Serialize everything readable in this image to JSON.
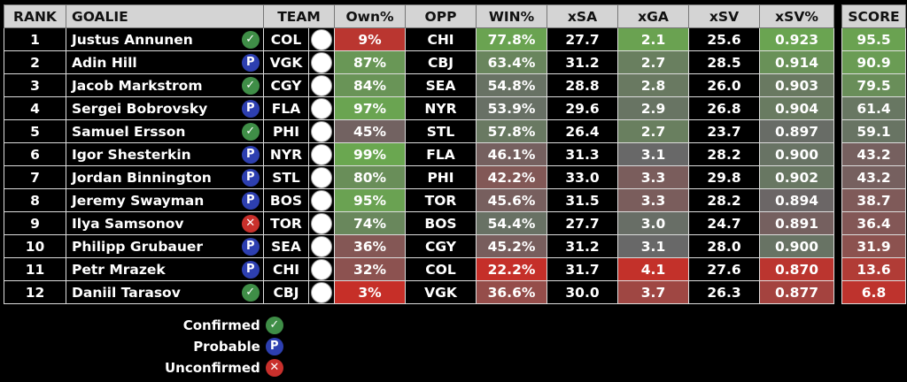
{
  "headers": {
    "rank": "RANK",
    "goalie": "GOALIE",
    "team": "TEAM",
    "own": "Own%",
    "opp": "OPP",
    "win": "WIN%",
    "xsa": "xSA",
    "xga": "xGA",
    "xsv": "xSV",
    "xsvp": "xSV%",
    "score": "SCORE"
  },
  "rows": [
    {
      "rank": "1",
      "goalie": "Justus Annunen",
      "status": "confirmed",
      "team": "COL",
      "own": "9%",
      "opp": "CHI",
      "win": "77.8%",
      "xsa": "27.7",
      "xga": "2.1",
      "xsv": "25.6",
      "xsvp": "0.923",
      "score": "95.5"
    },
    {
      "rank": "2",
      "goalie": "Adin Hill",
      "status": "probable",
      "team": "VGK",
      "own": "87%",
      "opp": "CBJ",
      "win": "63.4%",
      "xsa": "31.2",
      "xga": "2.7",
      "xsv": "28.5",
      "xsvp": "0.914",
      "score": "90.9"
    },
    {
      "rank": "3",
      "goalie": "Jacob Markstrom",
      "status": "confirmed",
      "team": "CGY",
      "own": "84%",
      "opp": "SEA",
      "win": "54.8%",
      "xsa": "28.8",
      "xga": "2.8",
      "xsv": "26.0",
      "xsvp": "0.903",
      "score": "79.5"
    },
    {
      "rank": "4",
      "goalie": "Sergei Bobrovsky",
      "status": "probable",
      "team": "FLA",
      "own": "97%",
      "opp": "NYR",
      "win": "53.9%",
      "xsa": "29.6",
      "xga": "2.9",
      "xsv": "26.8",
      "xsvp": "0.904",
      "score": "61.4"
    },
    {
      "rank": "5",
      "goalie": "Samuel Ersson",
      "status": "confirmed",
      "team": "PHI",
      "own": "45%",
      "opp": "STL",
      "win": "57.8%",
      "xsa": "26.4",
      "xga": "2.7",
      "xsv": "23.7",
      "xsvp": "0.897",
      "score": "59.1"
    },
    {
      "rank": "6",
      "goalie": "Igor Shesterkin",
      "status": "probable",
      "team": "NYR",
      "own": "99%",
      "opp": "FLA",
      "win": "46.1%",
      "xsa": "31.3",
      "xga": "3.1",
      "xsv": "28.2",
      "xsvp": "0.900",
      "score": "43.2"
    },
    {
      "rank": "7",
      "goalie": "Jordan Binnington",
      "status": "probable",
      "team": "STL",
      "own": "80%",
      "opp": "PHI",
      "win": "42.2%",
      "xsa": "33.0",
      "xga": "3.3",
      "xsv": "29.8",
      "xsvp": "0.902",
      "score": "43.2"
    },
    {
      "rank": "8",
      "goalie": "Jeremy Swayman",
      "status": "probable",
      "team": "BOS",
      "own": "95%",
      "opp": "TOR",
      "win": "45.6%",
      "xsa": "31.5",
      "xga": "3.3",
      "xsv": "28.2",
      "xsvp": "0.894",
      "score": "38.7"
    },
    {
      "rank": "9",
      "goalie": "Ilya Samsonov",
      "status": "unconfirmed",
      "team": "TOR",
      "own": "74%",
      "opp": "BOS",
      "win": "54.4%",
      "xsa": "27.7",
      "xga": "3.0",
      "xsv": "24.7",
      "xsvp": "0.891",
      "score": "36.4"
    },
    {
      "rank": "10",
      "goalie": "Philipp Grubauer",
      "status": "probable",
      "team": "SEA",
      "own": "36%",
      "opp": "CGY",
      "win": "45.2%",
      "xsa": "31.2",
      "xga": "3.1",
      "xsv": "28.0",
      "xsvp": "0.900",
      "score": "31.9"
    },
    {
      "rank": "11",
      "goalie": "Petr Mrazek",
      "status": "probable",
      "team": "CHI",
      "own": "32%",
      "opp": "COL",
      "win": "22.2%",
      "xsa": "31.7",
      "xga": "4.1",
      "xsv": "27.6",
      "xsvp": "0.870",
      "score": "13.6"
    },
    {
      "rank": "12",
      "goalie": "Daniil Tarasov",
      "status": "confirmed",
      "team": "CBJ",
      "own": "3%",
      "opp": "VGK",
      "win": "36.6%",
      "xsa": "30.0",
      "xga": "3.7",
      "xsv": "26.3",
      "xsvp": "0.877",
      "score": "6.8"
    }
  ],
  "status_glyphs": {
    "confirmed": "✓",
    "probable": "P",
    "unconfirmed": "✕"
  },
  "legend": {
    "confirmed": "Confirmed",
    "probable": "Probable",
    "unconfirmed": "Unconfirmed"
  },
  "colors": {
    "good": "#6aa84f",
    "bad": "#cc2b24",
    "mid": "#686868"
  }
}
